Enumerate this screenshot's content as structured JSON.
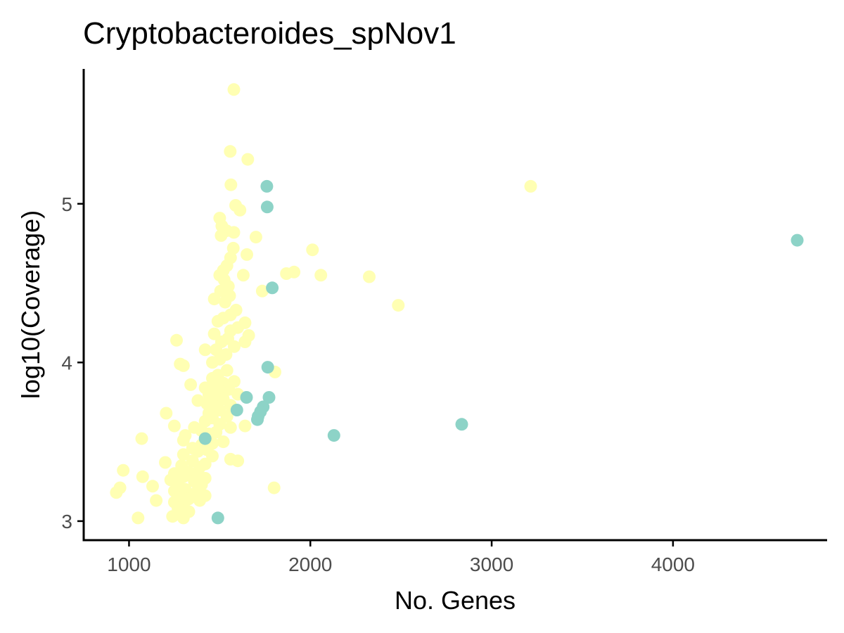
{
  "chart_data": {
    "type": "scatter",
    "title": "Cryptobacteroides_spNov1",
    "xlabel": "No. Genes",
    "ylabel": "log10(Coverage)",
    "xlim": [
      750,
      4850
    ],
    "ylim": [
      2.88,
      5.85
    ],
    "x_ticks": [
      1000,
      2000,
      3000,
      4000
    ],
    "y_ticks": [
      3,
      4,
      5
    ],
    "grid": false,
    "legend": "none",
    "colors": {
      "group_a": "#ffffb3",
      "group_b": "#8dd3c7"
    },
    "series": [
      {
        "color_key": "group_a",
        "points": [
          [
            1578,
            5.72
          ],
          [
            1558,
            5.33
          ],
          [
            1655,
            5.28
          ],
          [
            1562,
            5.12
          ],
          [
            3215,
            5.11
          ],
          [
            1588,
            4.99
          ],
          [
            1612,
            4.96
          ],
          [
            1500,
            4.91
          ],
          [
            1512,
            4.86
          ],
          [
            1538,
            4.83
          ],
          [
            1578,
            4.82
          ],
          [
            1508,
            4.8
          ],
          [
            1700,
            4.79
          ],
          [
            1575,
            4.72
          ],
          [
            1650,
            4.68
          ],
          [
            2012,
            4.71
          ],
          [
            1560,
            4.66
          ],
          [
            1540,
            4.61
          ],
          [
            1520,
            4.58
          ],
          [
            1500,
            4.55
          ],
          [
            1630,
            4.55
          ],
          [
            1910,
            4.57
          ],
          [
            1868,
            4.56
          ],
          [
            2058,
            4.55
          ],
          [
            2325,
            4.54
          ],
          [
            1525,
            4.52
          ],
          [
            1548,
            4.48
          ],
          [
            1505,
            4.45
          ],
          [
            1735,
            4.45
          ],
          [
            1555,
            4.42
          ],
          [
            1470,
            4.4
          ],
          [
            1530,
            4.38
          ],
          [
            2485,
            4.36
          ],
          [
            1590,
            4.33
          ],
          [
            1560,
            4.3
          ],
          [
            1520,
            4.28
          ],
          [
            1490,
            4.26
          ],
          [
            1640,
            4.25
          ],
          [
            1600,
            4.22
          ],
          [
            1560,
            4.2
          ],
          [
            1470,
            4.18
          ],
          [
            1660,
            4.17
          ],
          [
            1545,
            4.15
          ],
          [
            1510,
            4.13
          ],
          [
            1640,
            4.13
          ],
          [
            1262,
            4.14
          ],
          [
            1580,
            4.1
          ],
          [
            1480,
            4.08
          ],
          [
            1420,
            4.08
          ],
          [
            1535,
            4.05
          ],
          [
            1500,
            4.02
          ],
          [
            1460,
            4.0
          ],
          [
            1282,
            3.99
          ],
          [
            1300,
            3.98
          ],
          [
            1540,
            3.95
          ],
          [
            1805,
            3.94
          ],
          [
            1490,
            3.92
          ],
          [
            1460,
            3.9
          ],
          [
            1580,
            3.88
          ],
          [
            1520,
            3.87
          ],
          [
            1340,
            3.86
          ],
          [
            1470,
            3.85
          ],
          [
            1420,
            3.84
          ],
          [
            1550,
            3.83
          ],
          [
            1500,
            3.82
          ],
          [
            1440,
            3.8
          ],
          [
            1600,
            3.8
          ],
          [
            1470,
            3.78
          ],
          [
            1520,
            3.77
          ],
          [
            1380,
            3.76
          ],
          [
            1430,
            3.74
          ],
          [
            1560,
            3.73
          ],
          [
            1480,
            3.72
          ],
          [
            1500,
            3.7
          ],
          [
            1205,
            3.68
          ],
          [
            1440,
            3.68
          ],
          [
            1540,
            3.66
          ],
          [
            1460,
            3.65
          ],
          [
            1420,
            3.63
          ],
          [
            1500,
            3.61
          ],
          [
            1250,
            3.6
          ],
          [
            1640,
            3.6
          ],
          [
            1560,
            3.59
          ],
          [
            1360,
            3.59
          ],
          [
            1400,
            3.57
          ],
          [
            1480,
            3.56
          ],
          [
            1440,
            3.55
          ],
          [
            1310,
            3.54
          ],
          [
            1070,
            3.52
          ],
          [
            1300,
            3.51
          ],
          [
            1520,
            3.5
          ],
          [
            1460,
            3.49
          ],
          [
            1400,
            3.48
          ],
          [
            1350,
            3.46
          ],
          [
            1430,
            3.45
          ],
          [
            1380,
            3.44
          ],
          [
            1300,
            3.42
          ],
          [
            1460,
            3.41
          ],
          [
            1560,
            3.39
          ],
          [
            1600,
            3.38
          ],
          [
            1350,
            3.38
          ],
          [
            1200,
            3.37
          ],
          [
            1420,
            3.36
          ],
          [
            1290,
            3.35
          ],
          [
            1390,
            3.34
          ],
          [
            968,
            3.32
          ],
          [
            1330,
            3.31
          ],
          [
            1250,
            3.3
          ],
          [
            1380,
            3.29
          ],
          [
            1300,
            3.28
          ],
          [
            1075,
            3.28
          ],
          [
            1420,
            3.27
          ],
          [
            1230,
            3.26
          ],
          [
            1360,
            3.25
          ],
          [
            1270,
            3.24
          ],
          [
            1400,
            3.23
          ],
          [
            1130,
            3.22
          ],
          [
            950,
            3.21
          ],
          [
            1800,
            3.21
          ],
          [
            1310,
            3.2
          ],
          [
            1250,
            3.19
          ],
          [
            1370,
            3.18
          ],
          [
            930,
            3.18
          ],
          [
            1420,
            3.16
          ],
          [
            1280,
            3.15
          ],
          [
            1330,
            3.14
          ],
          [
            1150,
            3.13
          ],
          [
            1250,
            3.12
          ],
          [
            1390,
            3.13
          ],
          [
            1300,
            3.1
          ],
          [
            1270,
            3.08
          ],
          [
            1330,
            3.06
          ],
          [
            1240,
            3.03
          ],
          [
            1300,
            3.02
          ],
          [
            1050,
            3.02
          ]
        ]
      },
      {
        "color_key": "group_b",
        "points": [
          [
            1760,
            5.11
          ],
          [
            1762,
            4.98
          ],
          [
            4685,
            4.77
          ],
          [
            1790,
            4.47
          ],
          [
            1765,
            3.97
          ],
          [
            1648,
            3.78
          ],
          [
            1772,
            3.78
          ],
          [
            1740,
            3.72
          ],
          [
            1725,
            3.69
          ],
          [
            1712,
            3.66
          ],
          [
            1708,
            3.64
          ],
          [
            1595,
            3.7
          ],
          [
            2835,
            3.61
          ],
          [
            2130,
            3.54
          ],
          [
            1420,
            3.52
          ],
          [
            1490,
            3.02
          ]
        ]
      }
    ]
  }
}
